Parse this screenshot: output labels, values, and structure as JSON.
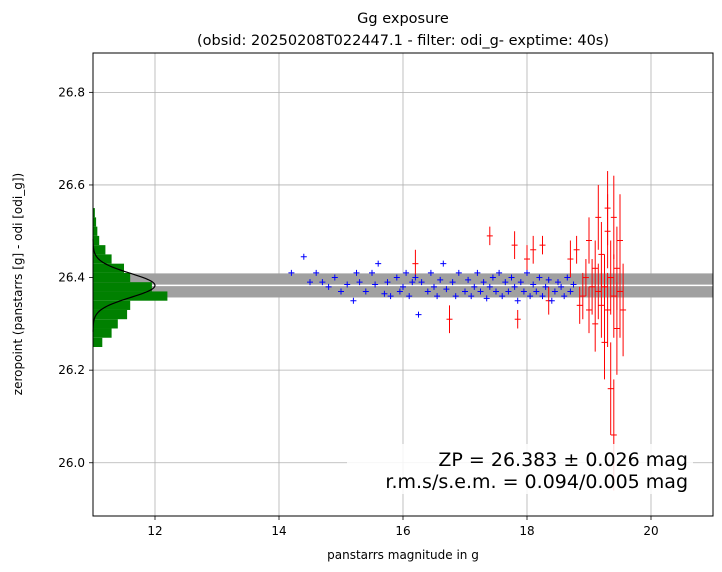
{
  "chart_data": {
    "type": "scatter",
    "title": "Gg exposure",
    "subtitle": "(obsid: 20250208T022447.1 - filter: odi_g- exptime: 40s)",
    "xlabel": "panstarrs magnitude in g",
    "ylabel": "zeropoint (panstarrs [g] - odi [odi_g])",
    "xlim": [
      11.0,
      21.0
    ],
    "ylim": [
      25.885,
      26.885
    ],
    "xticks": [
      "12",
      "14",
      "16",
      "18",
      "20"
    ],
    "yticks": [
      "26.0",
      "26.2",
      "26.4",
      "26.6",
      "26.8"
    ],
    "grid": true,
    "zp": 26.383,
    "zp_band": [
      26.357,
      26.409
    ],
    "annotation_line1": "ZP = 26.383 ± 0.026 mag",
    "annotation_line2": "r.m.s/s.e.m. = 0.094/0.005 mag",
    "colors": {
      "used": "#0000ff",
      "rejected": "#ff0000",
      "histogram": "#008000",
      "band": "#a0a0a0",
      "grid": "#b0b0b0",
      "gauss": "#000000"
    },
    "used_points": [
      [
        14.2,
        26.41
      ],
      [
        14.4,
        26.445
      ],
      [
        14.5,
        26.39
      ],
      [
        14.6,
        26.41
      ],
      [
        14.7,
        26.39
      ],
      [
        14.8,
        26.38
      ],
      [
        14.9,
        26.4
      ],
      [
        15.0,
        26.37
      ],
      [
        15.1,
        26.385
      ],
      [
        15.2,
        26.35
      ],
      [
        15.25,
        26.41
      ],
      [
        15.3,
        26.39
      ],
      [
        15.4,
        26.37
      ],
      [
        15.5,
        26.41
      ],
      [
        15.55,
        26.385
      ],
      [
        15.6,
        26.43
      ],
      [
        15.7,
        26.365
      ],
      [
        15.75,
        26.39
      ],
      [
        15.8,
        26.36
      ],
      [
        15.9,
        26.4
      ],
      [
        15.95,
        26.37
      ],
      [
        16.0,
        26.38
      ],
      [
        16.05,
        26.41
      ],
      [
        16.1,
        26.36
      ],
      [
        16.15,
        26.39
      ],
      [
        16.2,
        26.4
      ],
      [
        16.25,
        26.32
      ],
      [
        16.3,
        26.39
      ],
      [
        16.4,
        26.37
      ],
      [
        16.45,
        26.41
      ],
      [
        16.5,
        26.38
      ],
      [
        16.55,
        26.36
      ],
      [
        16.6,
        26.395
      ],
      [
        16.65,
        26.43
      ],
      [
        16.7,
        26.375
      ],
      [
        16.8,
        26.39
      ],
      [
        16.85,
        26.36
      ],
      [
        16.9,
        26.41
      ],
      [
        17.0,
        26.37
      ],
      [
        17.05,
        26.395
      ],
      [
        17.1,
        26.36
      ],
      [
        17.15,
        26.38
      ],
      [
        17.2,
        26.41
      ],
      [
        17.25,
        26.37
      ],
      [
        17.3,
        26.39
      ],
      [
        17.35,
        26.355
      ],
      [
        17.4,
        26.38
      ],
      [
        17.45,
        26.4
      ],
      [
        17.5,
        26.37
      ],
      [
        17.55,
        26.41
      ],
      [
        17.6,
        26.36
      ],
      [
        17.65,
        26.39
      ],
      [
        17.7,
        26.37
      ],
      [
        17.75,
        26.4
      ],
      [
        17.8,
        26.38
      ],
      [
        17.85,
        26.35
      ],
      [
        17.9,
        26.39
      ],
      [
        17.95,
        26.37
      ],
      [
        18.0,
        26.41
      ],
      [
        18.05,
        26.36
      ],
      [
        18.1,
        26.385
      ],
      [
        18.15,
        26.37
      ],
      [
        18.2,
        26.4
      ],
      [
        18.25,
        26.36
      ],
      [
        18.3,
        26.38
      ],
      [
        18.35,
        26.395
      ],
      [
        18.4,
        26.35
      ],
      [
        18.45,
        26.37
      ],
      [
        18.5,
        26.39
      ],
      [
        18.55,
        26.38
      ],
      [
        18.6,
        26.36
      ],
      [
        18.65,
        26.4
      ],
      [
        18.7,
        26.37
      ],
      [
        18.75,
        26.385
      ]
    ],
    "rejected_points": [
      [
        16.2,
        26.43,
        0.03
      ],
      [
        16.75,
        26.31,
        0.03
      ],
      [
        17.4,
        26.49,
        0.02
      ],
      [
        17.8,
        26.47,
        0.03
      ],
      [
        17.85,
        26.31,
        0.02
      ],
      [
        18.0,
        26.44,
        0.03
      ],
      [
        18.1,
        26.46,
        0.03
      ],
      [
        18.25,
        26.47,
        0.02
      ],
      [
        18.35,
        26.35,
        0.03
      ],
      [
        18.7,
        26.44,
        0.04
      ],
      [
        18.8,
        26.46,
        0.03
      ],
      [
        18.85,
        26.34,
        0.04
      ],
      [
        18.9,
        26.36,
        0.05
      ],
      [
        18.95,
        26.4,
        0.04
      ],
      [
        19.0,
        26.33,
        0.05
      ],
      [
        19.0,
        26.48,
        0.05
      ],
      [
        19.05,
        26.38,
        0.06
      ],
      [
        19.1,
        26.3,
        0.06
      ],
      [
        19.1,
        26.42,
        0.06
      ],
      [
        19.15,
        26.37,
        0.06
      ],
      [
        19.15,
        26.53,
        0.07
      ],
      [
        19.2,
        26.34,
        0.07
      ],
      [
        19.2,
        26.45,
        0.07
      ],
      [
        19.25,
        26.26,
        0.08
      ],
      [
        19.25,
        26.38,
        0.07
      ],
      [
        19.3,
        26.33,
        0.08
      ],
      [
        19.3,
        26.5,
        0.08
      ],
      [
        19.3,
        26.55,
        0.08
      ],
      [
        19.35,
        26.4,
        0.08
      ],
      [
        19.35,
        26.16,
        0.1
      ],
      [
        19.4,
        26.36,
        0.09
      ],
      [
        19.4,
        26.06,
        0.12
      ],
      [
        19.4,
        26.53,
        0.09
      ],
      [
        19.45,
        26.29,
        0.1
      ],
      [
        19.45,
        26.42,
        0.09
      ],
      [
        19.5,
        26.37,
        0.1
      ],
      [
        19.5,
        26.48,
        0.1
      ],
      [
        19.55,
        26.33,
        0.1
      ]
    ],
    "histogram": [
      {
        "lo": 26.25,
        "hi": 26.27,
        "count": 0.15
      },
      {
        "lo": 26.27,
        "hi": 26.29,
        "count": 0.3
      },
      {
        "lo": 26.29,
        "hi": 26.31,
        "count": 0.4
      },
      {
        "lo": 26.31,
        "hi": 26.33,
        "count": 0.55
      },
      {
        "lo": 26.33,
        "hi": 26.35,
        "count": 0.6
      },
      {
        "lo": 26.35,
        "hi": 26.37,
        "count": 1.2
      },
      {
        "lo": 26.37,
        "hi": 26.39,
        "count": 0.95
      },
      {
        "lo": 26.39,
        "hi": 26.41,
        "count": 0.6
      },
      {
        "lo": 26.41,
        "hi": 26.43,
        "count": 0.5
      },
      {
        "lo": 26.43,
        "hi": 26.45,
        "count": 0.3
      },
      {
        "lo": 26.45,
        "hi": 26.47,
        "count": 0.2
      },
      {
        "lo": 26.47,
        "hi": 26.49,
        "count": 0.1
      },
      {
        "lo": 26.49,
        "hi": 26.51,
        "count": 0.07
      },
      {
        "lo": 26.51,
        "hi": 26.53,
        "count": 0.05
      },
      {
        "lo": 26.53,
        "hi": 26.55,
        "count": 0.03
      }
    ],
    "gauss_peak": 1.0,
    "gauss_sigma": 0.026
  }
}
